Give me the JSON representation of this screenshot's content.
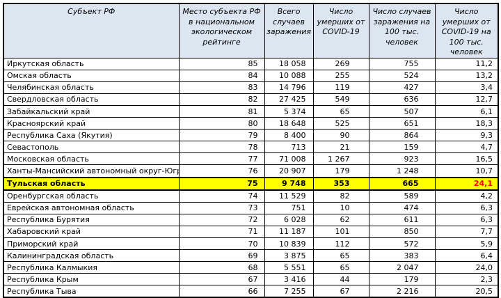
{
  "colors": {
    "header_bg": "#dce6f1",
    "highlight_bg": "#ffff00",
    "highlight_value_color": "#ff0000",
    "border": "#000000",
    "text": "#000000"
  },
  "chart_data": {
    "type": "table",
    "columns": [
      "Субъект РФ",
      "Место субъекта РФ в национальном экологическом рейтинге",
      "Всего случаев заражения",
      "Число умерших от COVID-19",
      "Число случаев заражения на 100 тыс. человек",
      "Число умерших от COVID-19 на 100 тыс. человек"
    ],
    "highlight_note": "Строка «Тульская область» выделена жёлтым, значение 24,1 — красным жирным",
    "rows": [
      {
        "region": "Иркутская область",
        "rank": "85",
        "total_cases": "18 058",
        "deaths": "269",
        "cases_per_100k": "755",
        "deaths_per_100k": "11,2",
        "highlighted": false
      },
      {
        "region": "Омская область",
        "rank": "84",
        "total_cases": "10 088",
        "deaths": "255",
        "cases_per_100k": "524",
        "deaths_per_100k": "13,2",
        "highlighted": false
      },
      {
        "region": "Челябинская область",
        "rank": "83",
        "total_cases": "14 796",
        "deaths": "119",
        "cases_per_100k": "427",
        "deaths_per_100k": "3,4",
        "highlighted": false
      },
      {
        "region": "Свердловская область",
        "rank": "82",
        "total_cases": "27 425",
        "deaths": "549",
        "cases_per_100k": "636",
        "deaths_per_100k": "12,7",
        "highlighted": false
      },
      {
        "region": "Забайкальский край",
        "rank": "81",
        "total_cases": "5 374",
        "deaths": "65",
        "cases_per_100k": "507",
        "deaths_per_100k": "6,1",
        "highlighted": false
      },
      {
        "region": "Красноярский край",
        "rank": "80",
        "total_cases": "18 648",
        "deaths": "525",
        "cases_per_100k": "651",
        "deaths_per_100k": "18,3",
        "highlighted": false
      },
      {
        "region": "Республика Саха (Якутия)",
        "rank": "79",
        "total_cases": "8 400",
        "deaths": "90",
        "cases_per_100k": "864",
        "deaths_per_100k": "9,3",
        "highlighted": false
      },
      {
        "region": "Севастополь",
        "rank": "78",
        "total_cases": "713",
        "deaths": "21",
        "cases_per_100k": "159",
        "deaths_per_100k": "4,7",
        "highlighted": false
      },
      {
        "region": "Московская область",
        "rank": "77",
        "total_cases": "71 008",
        "deaths": "1 267",
        "cases_per_100k": "923",
        "deaths_per_100k": "16,5",
        "highlighted": false
      },
      {
        "region": "Ханты-Мансийский автономный округ-Югра",
        "rank": "76",
        "total_cases": "20 907",
        "deaths": "179",
        "cases_per_100k": "1 248",
        "deaths_per_100k": "10,7",
        "highlighted": false
      },
      {
        "region": "Тульская область",
        "rank": "75",
        "total_cases": "9 748",
        "deaths": "353",
        "cases_per_100k": "665",
        "deaths_per_100k": "24,1",
        "highlighted": true
      },
      {
        "region": "Оренбургская область",
        "rank": "74",
        "total_cases": "11 529",
        "deaths": "82",
        "cases_per_100k": "589",
        "deaths_per_100k": "4,2",
        "highlighted": false
      },
      {
        "region": "Еврейская автономная область",
        "rank": "73",
        "total_cases": "751",
        "deaths": "10",
        "cases_per_100k": "474",
        "deaths_per_100k": "6,3",
        "highlighted": false
      },
      {
        "region": "Республика Бурятия",
        "rank": "72",
        "total_cases": "6 028",
        "deaths": "62",
        "cases_per_100k": "611",
        "deaths_per_100k": "6,3",
        "highlighted": false
      },
      {
        "region": "Хабаровский край",
        "rank": "71",
        "total_cases": "11 187",
        "deaths": "101",
        "cases_per_100k": "850",
        "deaths_per_100k": "7,7",
        "highlighted": false
      },
      {
        "region": "Приморский край",
        "rank": "70",
        "total_cases": "10 839",
        "deaths": "112",
        "cases_per_100k": "572",
        "deaths_per_100k": "5,9",
        "highlighted": false
      },
      {
        "region": "Калининградская область",
        "rank": "69",
        "total_cases": "3 875",
        "deaths": "65",
        "cases_per_100k": "383",
        "deaths_per_100k": "6,4",
        "highlighted": false
      },
      {
        "region": "Республика Калмыкия",
        "rank": "68",
        "total_cases": "5 551",
        "deaths": "65",
        "cases_per_100k": "2 047",
        "deaths_per_100k": "24,0",
        "highlighted": false
      },
      {
        "region": "Республика Крым",
        "rank": "67",
        "total_cases": "3 416",
        "deaths": "44",
        "cases_per_100k": "179",
        "deaths_per_100k": "2,3",
        "highlighted": false
      },
      {
        "region": "Республика Тыва",
        "rank": "66",
        "total_cases": "7 255",
        "deaths": "67",
        "cases_per_100k": "2 216",
        "deaths_per_100k": "20,5",
        "highlighted": false
      }
    ]
  }
}
